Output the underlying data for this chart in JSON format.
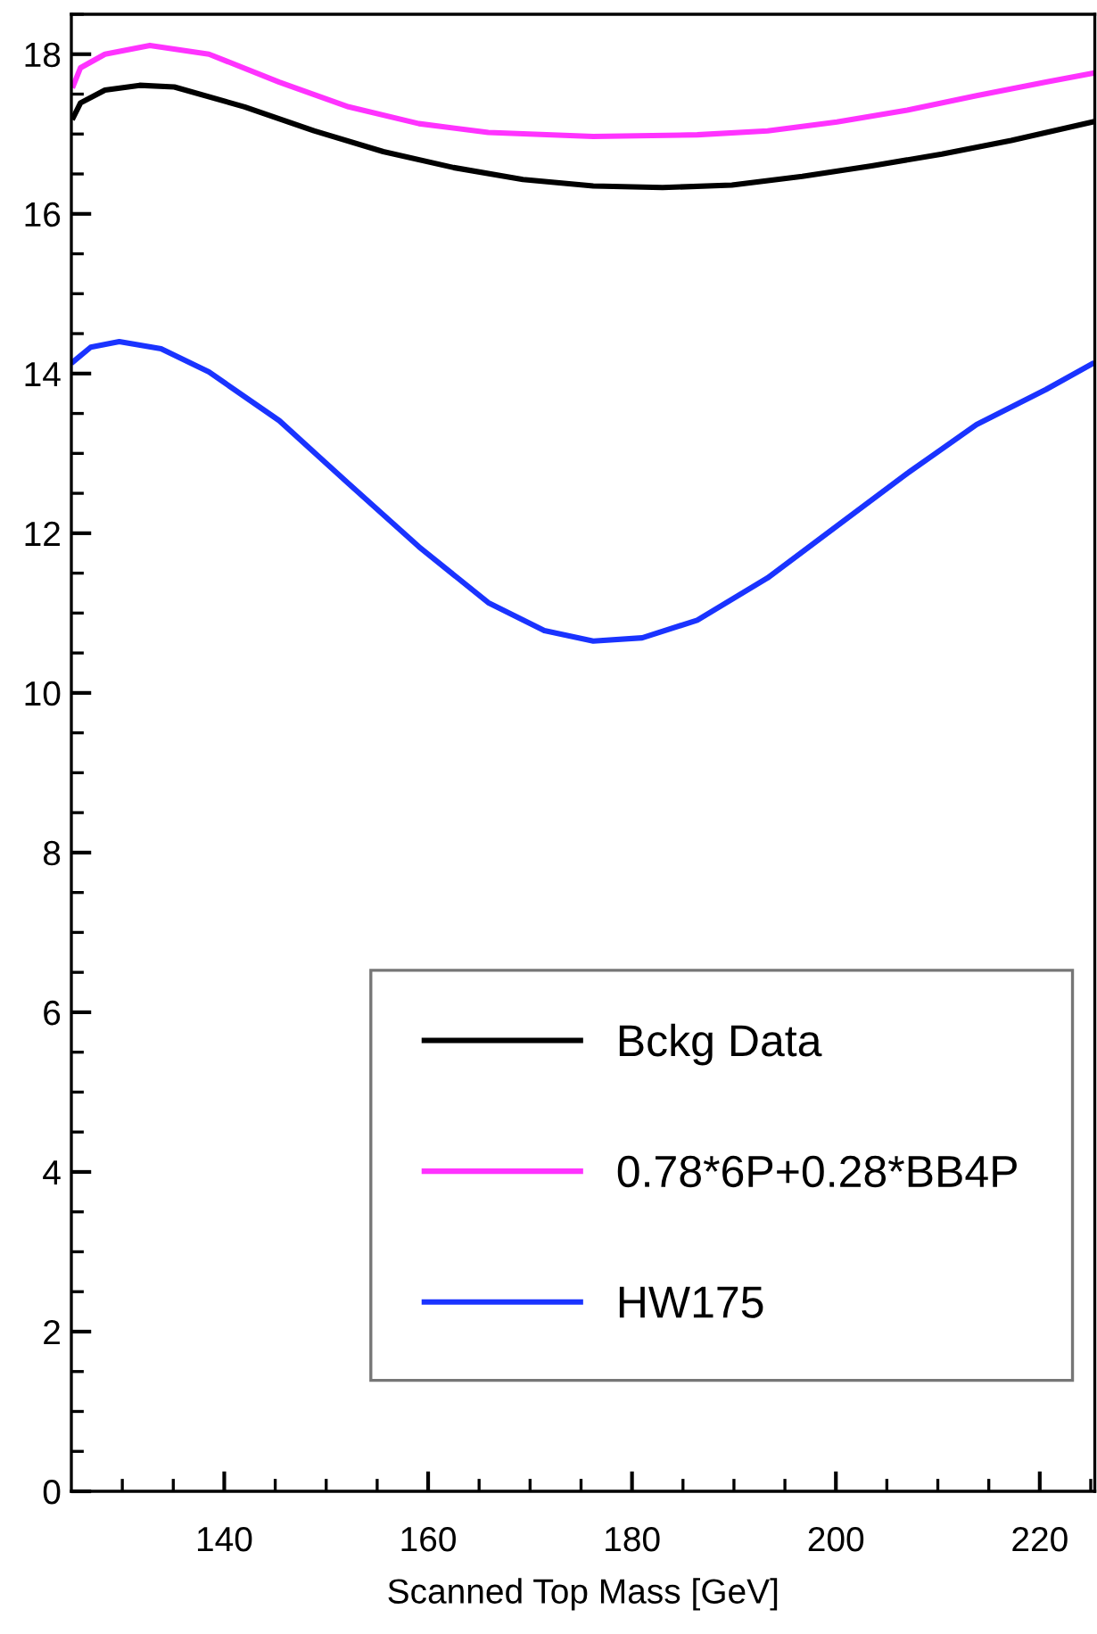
{
  "chart_data": {
    "type": "line",
    "xlabel": "Scanned Top Mass [GeV]",
    "xlim": [
      125,
      225.4
    ],
    "ylim": [
      0,
      18.5
    ],
    "xticks": [
      {
        "value": 130,
        "label": null
      },
      {
        "value": 135,
        "label": null
      },
      140,
      {
        "value": 145,
        "label": null
      },
      {
        "value": 150,
        "label": null
      },
      {
        "value": 155,
        "label": null
      },
      160,
      {
        "value": 165,
        "label": null
      },
      {
        "value": 170,
        "label": null
      },
      {
        "value": 175,
        "label": null
      },
      180,
      {
        "value": 185,
        "label": null
      },
      {
        "value": 190,
        "label": null
      },
      {
        "value": 195,
        "label": null
      },
      200,
      {
        "value": 205,
        "label": null
      },
      {
        "value": 210,
        "label": null
      },
      {
        "value": 215,
        "label": null
      },
      220,
      {
        "value": 225,
        "label": null
      }
    ],
    "yticks": [
      0,
      {
        "value": 0.5,
        "label": null
      },
      {
        "value": 1,
        "label": null
      },
      {
        "value": 1.5,
        "label": null
      },
      2,
      {
        "value": 2.5,
        "label": null
      },
      {
        "value": 3,
        "label": null
      },
      {
        "value": 3.5,
        "label": null
      },
      4,
      {
        "value": 4.5,
        "label": null
      },
      {
        "value": 5,
        "label": null
      },
      {
        "value": 5.5,
        "label": null
      },
      6,
      {
        "value": 6.5,
        "label": null
      },
      {
        "value": 7,
        "label": null
      },
      {
        "value": 7.5,
        "label": null
      },
      8,
      {
        "value": 8.5,
        "label": null
      },
      {
        "value": 9,
        "label": null
      },
      {
        "value": 9.5,
        "label": null
      },
      10,
      {
        "value": 10.5,
        "label": null
      },
      {
        "value": 11,
        "label": null
      },
      {
        "value": 11.5,
        "label": null
      },
      12,
      {
        "value": 12.5,
        "label": null
      },
      {
        "value": 13,
        "label": null
      },
      {
        "value": 13.5,
        "label": null
      },
      14,
      {
        "value": 14.5,
        "label": null
      },
      {
        "value": 15,
        "label": null
      },
      {
        "value": 15.5,
        "label": null
      },
      16,
      {
        "value": 16.5,
        "label": null
      },
      {
        "value": 17,
        "label": null
      },
      {
        "value": 17.5,
        "label": null
      },
      18,
      {
        "value": 18.5,
        "label": null
      }
    ],
    "grid": false,
    "legend": "bottom right",
    "marker": "none",
    "line_style": "solid",
    "series": [
      {
        "name": "Bckg Data",
        "color": "#000000",
        "x": [
          125.2,
          125.9,
          128.3,
          131.7,
          135.1,
          142,
          148.8,
          155.6,
          162.5,
          169.3,
          176.2,
          183,
          189.8,
          196.7,
          203.5,
          210.4,
          217.2,
          225.1
        ],
        "values": [
          17.21,
          17.39,
          17.55,
          17.61,
          17.59,
          17.34,
          17.04,
          16.78,
          16.58,
          16.43,
          16.35,
          16.33,
          16.36,
          16.47,
          16.6,
          16.75,
          16.92,
          17.15
        ]
      },
      {
        "name": "0.78*6P+0.28*BB4P",
        "color": "#ff33ff",
        "x": [
          125.2,
          125.9,
          128.3,
          132.7,
          138.5,
          145.4,
          152.2,
          159.1,
          165.9,
          176.2,
          186.4,
          193.3,
          200.1,
          207,
          213.8,
          220.6,
          225.1
        ],
        "values": [
          17.61,
          17.83,
          18.0,
          18.11,
          18.0,
          17.65,
          17.34,
          17.13,
          17.02,
          16.97,
          16.99,
          17.04,
          17.15,
          17.3,
          17.48,
          17.65,
          17.76
        ]
      },
      {
        "name": "HW175",
        "color": "#1a33ff",
        "x": [
          125.2,
          126.9,
          129.7,
          133.8,
          138.5,
          145.4,
          152.2,
          159.1,
          165.9,
          171.4,
          176.2,
          181,
          186.4,
          193.3,
          200.1,
          207,
          213.8,
          220.6,
          225.1
        ],
        "values": [
          14.15,
          14.33,
          14.4,
          14.31,
          14.02,
          13.41,
          12.62,
          11.83,
          11.13,
          10.78,
          10.65,
          10.69,
          10.91,
          11.44,
          12.09,
          12.75,
          13.36,
          13.8,
          14.12
        ]
      }
    ]
  }
}
